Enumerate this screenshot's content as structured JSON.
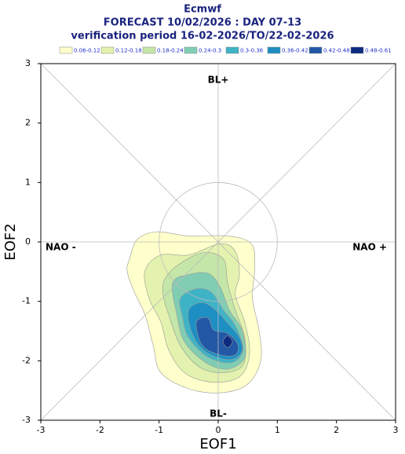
{
  "chart_data": {
    "type": "contour",
    "title": "Ecmwf",
    "subtitle": "FORECAST 10/02/2026 : DAY 07-13",
    "period": "verification period 16-02-2026/TO/22-02-2026",
    "x_label": "EOF1",
    "y_label": "EOF2",
    "xlim": [
      -3,
      3
    ],
    "ylim": [
      -3,
      3
    ],
    "xticks": [
      -3,
      -2,
      -1,
      0,
      1,
      2,
      3
    ],
    "yticks": [
      -3,
      -2,
      -1,
      0,
      1,
      2,
      3
    ],
    "annotations": [
      "BL+",
      "BL-",
      "NAO -",
      "NAO +"
    ],
    "levels": [
      {
        "label": "0.06-0.12",
        "color": "#ffffcc"
      },
      {
        "label": "0.12-0.18",
        "color": "#e3f2ae"
      },
      {
        "label": "0.18-0.24",
        "color": "#c4e6a8"
      },
      {
        "label": "0.24-0.3",
        "color": "#80cdb4"
      },
      {
        "label": "0.3-0.36",
        "color": "#3fb3c6"
      },
      {
        "label": "0.36-0.42",
        "color": "#1d8fc2"
      },
      {
        "label": "0.42-0.48",
        "color": "#2258a6"
      },
      {
        "label": "0.48-0.61",
        "color": "#0c2a80"
      }
    ],
    "contours": [
      {
        "level": 0,
        "x": [
          -1.5,
          -1.37,
          -1.04,
          -0.5,
          0.16,
          0.56,
          0.62,
          0.58,
          0.69,
          0.72,
          0.49,
          0.03,
          -0.5,
          -0.97,
          -1.1,
          -1.24,
          -1.43,
          -1.54
        ],
        "y": [
          -0.29,
          0.04,
          0.17,
          0.1,
          0.1,
          -0.03,
          -0.42,
          -0.95,
          -1.48,
          -2.0,
          -2.4,
          -2.54,
          -2.47,
          -2.2,
          -1.74,
          -1.22,
          -0.82,
          -0.49
        ]
      },
      {
        "level": 1,
        "x": [
          -1.24,
          -0.97,
          -0.5,
          0.03,
          0.29,
          0.36,
          0.29,
          0.45,
          0.53,
          0.36,
          -0.11,
          -0.57,
          -0.84,
          -0.97,
          -1.17
        ],
        "y": [
          -0.49,
          -0.22,
          -0.22,
          -0.03,
          -0.16,
          -0.55,
          -0.89,
          -1.35,
          -1.88,
          -2.27,
          -2.36,
          -2.2,
          -1.81,
          -1.35,
          -0.95
        ]
      },
      {
        "level": 2,
        "x": [
          -0.9,
          -0.64,
          -0.24,
          0.09,
          0.16,
          0.29,
          0.45,
          0.42,
          0.09,
          -0.31,
          -0.64,
          -0.84,
          -0.93
        ],
        "y": [
          -0.62,
          -0.36,
          -0.18,
          -0.29,
          -0.69,
          -1.15,
          -1.61,
          -2.07,
          -2.2,
          -2.11,
          -1.74,
          -1.22,
          -0.89
        ]
      },
      {
        "level": 3,
        "x": [
          -0.77,
          -0.5,
          -0.17,
          0.03,
          0.19,
          0.4,
          0.45,
          0.16,
          -0.21,
          -0.57,
          -0.7
        ],
        "y": [
          -0.69,
          -0.55,
          -0.53,
          -0.75,
          -1.15,
          -1.48,
          -1.94,
          -2.14,
          -2.03,
          -1.68,
          -1.22
        ]
      },
      {
        "level": 4,
        "x": [
          -0.64,
          -0.37,
          -0.11,
          0.09,
          0.29,
          0.42,
          0.23,
          -0.17,
          -0.5,
          -0.6
        ],
        "y": [
          -0.95,
          -0.79,
          -0.85,
          -1.15,
          -1.41,
          -1.81,
          -2.03,
          -1.94,
          -1.61,
          -1.28
        ]
      },
      {
        "level": 5,
        "x": [
          -0.5,
          -0.27,
          -0.04,
          0.16,
          0.36,
          0.4,
          0.19,
          -0.21,
          -0.44
        ],
        "y": [
          -1.15,
          -1.02,
          -1.15,
          -1.37,
          -1.61,
          -1.85,
          -1.98,
          -1.85,
          -1.54
        ]
      },
      {
        "level": 6,
        "x": [
          -0.37,
          -0.17,
          -0.08,
          0.16,
          0.33,
          0.29,
          0.03,
          -0.27
        ],
        "y": [
          -1.35,
          -1.28,
          -1.48,
          -1.54,
          -1.72,
          -1.9,
          -1.9,
          -1.74
        ]
      },
      {
        "level": 7,
        "x": [
          0.16,
          0.24,
          0.16,
          0.08
        ],
        "y": [
          -1.58,
          -1.68,
          -1.78,
          -1.68
        ]
      }
    ]
  }
}
